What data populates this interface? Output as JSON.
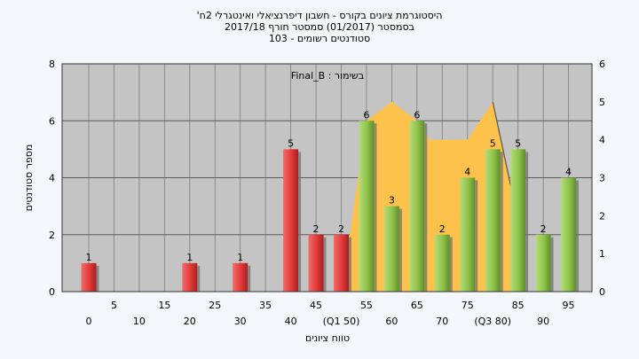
{
  "title_lines": [
    "היסטוגרמת ציונים בקורס - חשבון דיפרנציאלי ואינטגרלי 2ח'",
    "בסמסטר  (01/2017)  סמסטר חורף 2017/18",
    "סטודנטים רשומים - 103"
  ],
  "chart_data": {
    "type": "bar",
    "annotation": "בשימור : Final_B",
    "xlabel": "טווח ציונים",
    "ylabel": "מספר סטודנטים",
    "ylim": [
      0,
      8
    ],
    "y2lim": [
      0,
      6
    ],
    "yticks": [
      0,
      2,
      4,
      6,
      8
    ],
    "y2ticks": [
      0,
      1,
      2,
      3,
      4,
      5,
      6
    ],
    "grid": true,
    "xtick_row1": [
      "5",
      "15",
      "25",
      "35",
      "45",
      "55",
      "65",
      "75",
      "85",
      "95"
    ],
    "xtick_row2": [
      "0",
      "10",
      "20",
      "30",
      "40",
      "(Q1 50)",
      "60",
      "70",
      "(Q3 80)",
      "90"
    ],
    "bars": [
      {
        "x": 0,
        "value": 1,
        "color": "red"
      },
      {
        "x": 20,
        "value": 1,
        "color": "red"
      },
      {
        "x": 30,
        "value": 1,
        "color": "red"
      },
      {
        "x": 40,
        "value": 5,
        "color": "red"
      },
      {
        "x": 45,
        "value": 2,
        "color": "red"
      },
      {
        "x": 50,
        "value": 2,
        "color": "red"
      },
      {
        "x": 55,
        "value": 6,
        "color": "green"
      },
      {
        "x": 60,
        "value": 3,
        "color": "green"
      },
      {
        "x": 65,
        "value": 6,
        "color": "green"
      },
      {
        "x": 70,
        "value": 2,
        "color": "green"
      },
      {
        "x": 75,
        "value": 4,
        "color": "green"
      },
      {
        "x": 80,
        "value": 5,
        "color": "green"
      },
      {
        "x": 85,
        "value": 5,
        "color": "green"
      },
      {
        "x": 90,
        "value": 2,
        "color": "green"
      },
      {
        "x": 95,
        "value": 4,
        "color": "green"
      }
    ],
    "area_series": {
      "axis": "right",
      "color": "#fcc24c",
      "points": [
        [
          50,
          0
        ],
        [
          55,
          4.5
        ],
        [
          60,
          5
        ],
        [
          65,
          4.5
        ],
        [
          67.5,
          4
        ],
        [
          75,
          4
        ],
        [
          80,
          5
        ],
        [
          85,
          1.9
        ],
        [
          85,
          0
        ]
      ]
    },
    "colors": {
      "red": "#e23a3a",
      "green": "#8fc24a",
      "plot_bg": "#c4c4c4",
      "page_bg": "#f3f7fb"
    }
  }
}
